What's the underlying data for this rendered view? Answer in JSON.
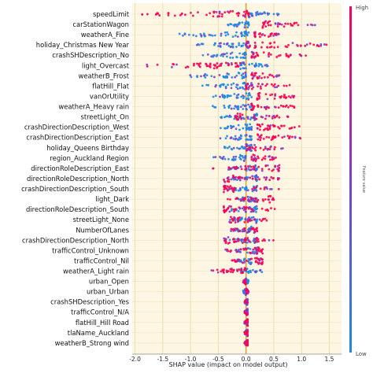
{
  "chart_data": {
    "type": "scatter",
    "title": "",
    "xlabel": "SHAP value (impact on model output)",
    "ylabel": "",
    "xlim": [
      -2.05,
      1.72
    ],
    "x_ticks": [
      "-2.0",
      "-1.5",
      "-1.0",
      "-0.5",
      "0.0",
      "0.5",
      "1.0",
      "1.5"
    ],
    "x_tick_values": [
      -2.0,
      -1.5,
      -1.0,
      -0.5,
      0.0,
      0.5,
      1.0,
      1.5
    ],
    "grid": true,
    "colorbar": {
      "label": "Feature value",
      "high": "High",
      "low": "Low",
      "colors": [
        "#1e88e5",
        "#7c3fd0",
        "#ff0052"
      ]
    },
    "features": [
      {
        "name": "speedLimit",
        "high_range": [
          -1.9,
          0.05
        ],
        "low_range": [
          0.05,
          0.6
        ]
      },
      {
        "name": "carStationWagon",
        "high_range": [
          0.3,
          1.25
        ],
        "low_range": [
          -0.35,
          0.05
        ]
      },
      {
        "name": "weatherA_Fine",
        "high_range": [
          0.15,
          0.6
        ],
        "low_range": [
          -1.2,
          0.05
        ]
      },
      {
        "name": "holiday_Christmas New Year",
        "high_range": [
          0.0,
          1.5
        ],
        "low_range": [
          -0.9,
          0.05
        ]
      },
      {
        "name": "crashSHDescription_No",
        "high_range": [
          0.1,
          1.1
        ],
        "low_range": [
          -0.8,
          0.0
        ]
      },
      {
        "name": "light_Overcast",
        "high_range": [
          -1.8,
          -0.1
        ],
        "low_range": [
          -0.1,
          0.4
        ]
      },
      {
        "name": "weatherB_Frost",
        "high_range": [
          0.1,
          0.6
        ],
        "low_range": [
          -1.1,
          0.0
        ]
      },
      {
        "name": "flatHill_Flat",
        "high_range": [
          0.0,
          0.8
        ],
        "low_range": [
          -0.8,
          0.0
        ]
      },
      {
        "name": "vanOrUtility",
        "high_range": [
          0.2,
          0.9
        ],
        "low_range": [
          -0.6,
          0.1
        ]
      },
      {
        "name": "weatherA_Heavy rain",
        "high_range": [
          0.1,
          0.9
        ],
        "low_range": [
          -0.6,
          0.1
        ]
      },
      {
        "name": "streetLight_On",
        "high_range": [
          -0.2,
          0.8
        ],
        "low_range": [
          -0.5,
          0.2
        ]
      },
      {
        "name": "crashDirectionDescription_West",
        "high_range": [
          0.2,
          1.0
        ],
        "low_range": [
          -0.5,
          0.1
        ]
      },
      {
        "name": "crashDirectionDescription_East",
        "high_range": [
          0.2,
          1.0
        ],
        "low_range": [
          -0.5,
          0.1
        ]
      },
      {
        "name": "holiday_Queens Birthday",
        "high_range": [
          0.0,
          0.7
        ],
        "low_range": [
          -0.4,
          0.1
        ]
      },
      {
        "name": "region_Auckland Region",
        "high_range": [
          0.1,
          0.6
        ],
        "low_range": [
          -0.6,
          0.0
        ]
      },
      {
        "name": "directionRoleDescription_East",
        "high_range": [
          -0.6,
          0.6
        ],
        "low_range": [
          -0.3,
          0.2
        ]
      },
      {
        "name": "directionRoleDescription_North",
        "high_range": [
          -0.4,
          0.6
        ],
        "low_range": [
          -0.3,
          0.2
        ]
      },
      {
        "name": "crashDirectionDescription_South",
        "high_range": [
          -0.4,
          0.6
        ],
        "low_range": [
          -0.3,
          0.2
        ]
      },
      {
        "name": "light_Dark",
        "high_range": [
          -0.5,
          0.5
        ],
        "low_range": [
          -0.2,
          0.2
        ]
      },
      {
        "name": "directionRoleDescription_South",
        "high_range": [
          -0.4,
          0.6
        ],
        "low_range": [
          -0.3,
          0.2
        ]
      },
      {
        "name": "streetLight_None",
        "high_range": [
          -0.3,
          0.5
        ],
        "low_range": [
          -0.3,
          0.2
        ]
      },
      {
        "name": "NumberOfLanes",
        "high_range": [
          -0.3,
          0.2
        ],
        "low_range": [
          -0.2,
          0.1
        ]
      },
      {
        "name": "crashDirectionDescription_North",
        "high_range": [
          -0.4,
          0.5
        ],
        "low_range": [
          -0.3,
          0.2
        ]
      },
      {
        "name": "trafficControl_Unknown",
        "high_range": [
          -0.4,
          0.3
        ],
        "low_range": [
          -0.2,
          0.2
        ]
      },
      {
        "name": "trafficControl_Nil",
        "high_range": [
          -0.3,
          0.3
        ],
        "low_range": [
          -0.2,
          0.1
        ]
      },
      {
        "name": "weatherA_Light rain",
        "high_range": [
          -0.7,
          0.0
        ],
        "low_range": [
          -0.1,
          0.3
        ]
      },
      {
        "name": "urban_Open",
        "high_range": [
          -0.05,
          0.0
        ],
        "low_range": [
          0.0,
          0.05
        ]
      },
      {
        "name": "urban_Urban",
        "high_range": [
          0.0,
          0.05
        ],
        "low_range": [
          -0.05,
          0.0
        ]
      },
      {
        "name": "crashSHDescription_Yes",
        "high_range": [
          -0.03,
          0.03
        ],
        "low_range": [
          -0.03,
          0.03
        ]
      },
      {
        "name": "trafficControl_N/A",
        "high_range": [
          -0.03,
          0.03
        ],
        "low_range": [
          -0.03,
          0.03
        ]
      },
      {
        "name": "flatHill_Hill Road",
        "high_range": [
          -0.03,
          0.03
        ],
        "low_range": [
          -0.03,
          0.03
        ]
      },
      {
        "name": "tlaName_Auckland",
        "high_range": [
          -0.03,
          0.03
        ],
        "low_range": [
          -0.03,
          0.03
        ]
      },
      {
        "name": "weatherB_Strong wind",
        "high_range": [
          -0.03,
          0.03
        ],
        "low_range": [
          -0.03,
          0.03
        ]
      }
    ]
  }
}
